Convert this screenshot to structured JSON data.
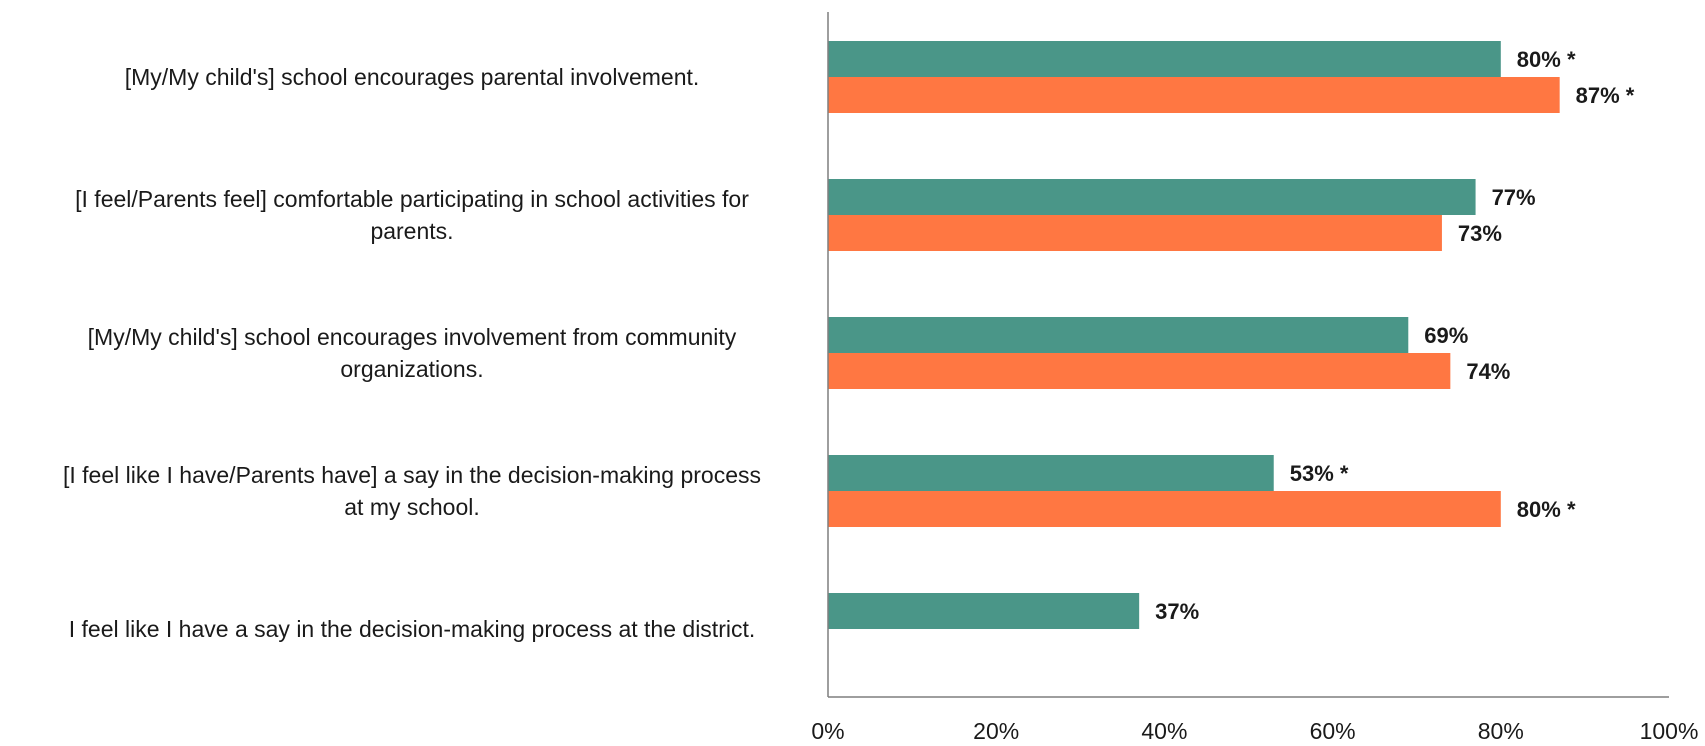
{
  "chart_data": {
    "type": "bar",
    "orientation": "horizontal",
    "categories": [
      [
        "[My/My child's] school encourages parental involvement."
      ],
      [
        "[I feel/Parents feel] comfortable participating in school activities for",
        "parents."
      ],
      [
        "[My/My child's] school encourages involvement from community",
        "organizations."
      ],
      [
        "[I feel like I have/Parents have] a say in the decision-making process",
        "at my school."
      ],
      [
        "I feel like I have a say in the decision-making process at the district."
      ]
    ],
    "series": [
      {
        "color": "#4a9688",
        "values": [
          80,
          77,
          69,
          53,
          37
        ],
        "labels": [
          "80% *",
          "77%",
          "69%",
          "53% *",
          "37%"
        ]
      },
      {
        "color": "#ff7742",
        "values": [
          87,
          73,
          74,
          80,
          null
        ],
        "labels": [
          "87% *",
          "73%",
          "74%",
          "80% *",
          null
        ]
      }
    ],
    "xlim": [
      0,
      100
    ],
    "xticks": [
      "0%",
      "20%",
      "40%",
      "60%",
      "80%",
      "100%"
    ],
    "grid": false,
    "legend": "none"
  }
}
